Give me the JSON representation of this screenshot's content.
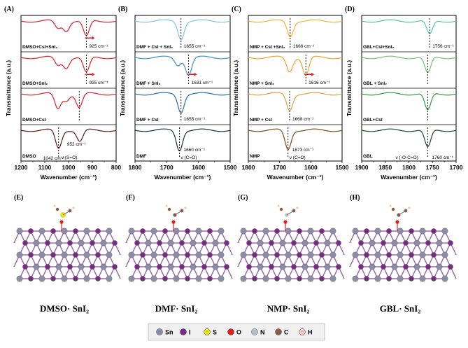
{
  "colors": {
    "red": "#e0202a",
    "dmso_trace": "#e0202a",
    "dmso_pure": "#5a1a14",
    "dmf_1": "#7fc4e8",
    "dmf_2": "#3f8fd0",
    "dmf_3": "#2a6da0",
    "dmf_pure": "#12304a",
    "nmp_1": "#f5b430",
    "nmp_2": "#f0a424",
    "nmp_3": "#e0a040",
    "nmp_pure": "#7a4a1e",
    "gbl_1": "#4ec9a0",
    "gbl_2": "#74c07c",
    "gbl_3": "#2f9a44",
    "gbl_pure": "#1a4a2a",
    "sn": "#8a8ea8",
    "i": "#7a2a88",
    "s": "#e8e020",
    "o": "#e02020",
    "n": "#b8bccc",
    "c": "#8a5a48",
    "h": "#f0c8c0"
  },
  "y_axis_label": "Transmittance (a.u.)",
  "x_axis_label": "Wavenumber (cm⁻¹)",
  "chart_data": [
    {
      "type": "line",
      "panel": "(A)",
      "xlim": [
        1200,
        800
      ],
      "x_ticks": [
        "1200",
        "1100",
        "1000",
        "900",
        "800"
      ],
      "series": [
        {
          "name": "DMSO+CsI+SnI₂",
          "color_key": "dmso_trace",
          "peaks": [
            {
              "x": 925,
              "depth": 0.62
            },
            {
              "x": 1010,
              "depth": 0.38
            },
            {
              "x": 1045,
              "depth": 0.3
            }
          ],
          "annotations": [
            "925 cm⁻¹"
          ]
        },
        {
          "name": "DMSO+SnI₂",
          "color_key": "dmso_trace",
          "peaks": [
            {
              "x": 925,
              "depth": 0.62
            },
            {
              "x": 1010,
              "depth": 0.4
            },
            {
              "x": 1045,
              "depth": 0.32
            }
          ],
          "annotations": [
            "925 cm⁻¹"
          ]
        },
        {
          "name": "DMSO+CsI",
          "color_key": "dmso_trace",
          "peaks": [
            {
              "x": 955,
              "depth": 0.55
            },
            {
              "x": 1045,
              "depth": 0.6
            },
            {
              "x": 1010,
              "depth": 0.25
            }
          ],
          "annotations": []
        },
        {
          "name": "DMSO",
          "color_key": "dmso_pure",
          "peaks": [
            {
              "x": 1042,
              "depth": 0.72
            },
            {
              "x": 952,
              "depth": 0.45
            }
          ],
          "annotations": [
            "952 cm⁻¹",
            "ν (S=O)",
            "1042 cm⁻¹"
          ]
        }
      ]
    },
    {
      "type": "line",
      "panel": "(B)",
      "xlim": [
        1800,
        1500
      ],
      "x_ticks": [
        "1800",
        "1700",
        "1600",
        "1500"
      ],
      "series": [
        {
          "name": "DMF + CsI + SnI₂",
          "color_key": "dmf_1",
          "peaks": [
            {
              "x": 1655,
              "depth": 0.7
            }
          ],
          "annotations": [
            "1655 cm⁻¹"
          ]
        },
        {
          "name": "DMF + SnI₂",
          "color_key": "dmf_2",
          "peaks": [
            {
              "x": 1631,
              "depth": 0.68
            },
            {
              "x": 1665,
              "depth": 0.3
            }
          ],
          "annotations": [
            "1631 cm⁻¹"
          ]
        },
        {
          "name": "DMF + CsI",
          "color_key": "dmf_3",
          "peaks": [
            {
              "x": 1655,
              "depth": 0.72
            }
          ],
          "annotations": [
            "1655 cm⁻¹"
          ]
        },
        {
          "name": "DMF",
          "color_key": "dmf_pure",
          "peaks": [
            {
              "x": 1660,
              "depth": 0.78
            }
          ],
          "annotations": [
            "1660 cm⁻¹",
            "ν (C=O)"
          ]
        }
      ]
    },
    {
      "type": "line",
      "panel": "(C)",
      "xlim": [
        1800,
        1500
      ],
      "x_ticks": [
        "1800",
        "1700",
        "1600",
        "1500"
      ],
      "series": [
        {
          "name": "NMP + CsI +SnI₂",
          "color_key": "nmp_1",
          "peaks": [
            {
              "x": 1666,
              "depth": 0.6
            }
          ],
          "annotations": [
            "1666 cm⁻¹"
          ]
        },
        {
          "name": "NMP + SnI₂",
          "color_key": "nmp_2",
          "peaks": [
            {
              "x": 1616,
              "depth": 0.72
            },
            {
              "x": 1668,
              "depth": 0.55
            }
          ],
          "annotations": [
            "1616 cm⁻¹"
          ]
        },
        {
          "name": "NMP + CsI",
          "color_key": "nmp_3",
          "peaks": [
            {
              "x": 1668,
              "depth": 0.65
            }
          ],
          "annotations": [
            "1668 cm⁻¹"
          ]
        },
        {
          "name": "NMP",
          "color_key": "nmp_pure",
          "peaks": [
            {
              "x": 1673,
              "depth": 0.75
            }
          ],
          "annotations": [
            "1673 cm⁻¹",
            "ν (C=O)"
          ]
        }
      ]
    },
    {
      "type": "line",
      "panel": "(D)",
      "xlim": [
        1900,
        1700
      ],
      "x_ticks": [
        "1900",
        "1850",
        "1800",
        "1750",
        "1700"
      ],
      "series": [
        {
          "name": "GBL+CsI+SnI₂",
          "color_key": "gbl_1",
          "peaks": [
            {
              "x": 1756,
              "depth": 0.55
            }
          ],
          "annotations": [
            "1756 cm⁻¹"
          ]
        },
        {
          "name": "GBL + SnI₂",
          "color_key": "gbl_2",
          "peaks": [
            {
              "x": 1760,
              "depth": 0.65
            }
          ],
          "annotations": []
        },
        {
          "name": "GBL+CsI",
          "color_key": "gbl_3",
          "peaks": [
            {
              "x": 1760,
              "depth": 0.68
            }
          ],
          "annotations": []
        },
        {
          "name": "GBL",
          "color_key": "gbl_pure",
          "peaks": [
            {
              "x": 1760,
              "depth": 0.7
            }
          ],
          "annotations": [
            "ν (-O-C=O)",
            "1760 cm⁻¹"
          ]
        }
      ]
    }
  ],
  "structures": [
    {
      "panel": "(E)",
      "title": "DMSO· SnI₂",
      "ligand_atom": "s"
    },
    {
      "panel": "(F)",
      "title": "DMF· SnI₂",
      "ligand_atom": "c"
    },
    {
      "panel": "(G)",
      "title": "NMP· SnI₂",
      "ligand_atom": "n"
    },
    {
      "panel": "(H)",
      "title": "GBL· SnI₂",
      "ligand_atom": "c"
    }
  ],
  "legend": [
    {
      "label": "Sn",
      "color_key": "sn"
    },
    {
      "label": "I",
      "color_key": "i"
    },
    {
      "label": "S",
      "color_key": "s"
    },
    {
      "label": "O",
      "color_key": "o"
    },
    {
      "label": "N",
      "color_key": "n"
    },
    {
      "label": "C",
      "color_key": "c"
    },
    {
      "label": "H",
      "color_key": "h"
    }
  ]
}
